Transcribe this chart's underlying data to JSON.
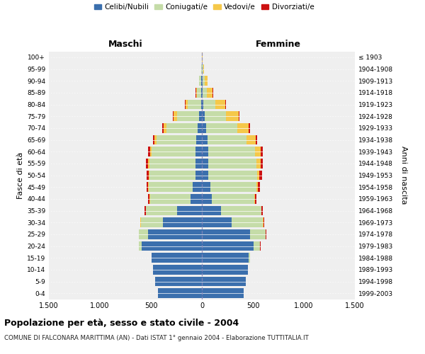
{
  "age_groups": [
    "0-4",
    "5-9",
    "10-14",
    "15-19",
    "20-24",
    "25-29",
    "30-34",
    "35-39",
    "40-44",
    "45-49",
    "50-54",
    "55-59",
    "60-64",
    "65-69",
    "70-74",
    "75-79",
    "80-84",
    "85-89",
    "90-94",
    "95-99",
    "100+"
  ],
  "birth_years": [
    "1999-2003",
    "1994-1998",
    "1989-1993",
    "1984-1988",
    "1979-1983",
    "1974-1978",
    "1969-1973",
    "1964-1968",
    "1959-1963",
    "1954-1958",
    "1949-1953",
    "1944-1948",
    "1939-1943",
    "1934-1938",
    "1929-1933",
    "1924-1928",
    "1919-1923",
    "1914-1918",
    "1909-1913",
    "1904-1908",
    "≤ 1903"
  ],
  "males": {
    "celibi": [
      430,
      460,
      480,
      490,
      590,
      530,
      380,
      240,
      110,
      90,
      65,
      65,
      65,
      55,
      40,
      25,
      10,
      8,
      5,
      3,
      2
    ],
    "coniugati": [
      1,
      1,
      2,
      5,
      30,
      85,
      220,
      310,
      400,
      430,
      450,
      450,
      430,
      390,
      310,
      220,
      130,
      40,
      20,
      5,
      0
    ],
    "vedovi": [
      0,
      0,
      0,
      0,
      0,
      1,
      1,
      2,
      3,
      5,
      8,
      10,
      12,
      18,
      28,
      30,
      20,
      10,
      5,
      2,
      0
    ],
    "divorziati": [
      0,
      0,
      0,
      0,
      1,
      3,
      5,
      10,
      12,
      15,
      20,
      22,
      20,
      15,
      10,
      8,
      5,
      2,
      0,
      0,
      0
    ]
  },
  "females": {
    "nubili": [
      410,
      430,
      450,
      460,
      510,
      470,
      290,
      185,
      95,
      85,
      65,
      60,
      60,
      55,
      40,
      25,
      12,
      8,
      5,
      3,
      2
    ],
    "coniugate": [
      1,
      1,
      3,
      10,
      60,
      155,
      310,
      395,
      420,
      450,
      475,
      475,
      460,
      385,
      305,
      210,
      120,
      40,
      22,
      8,
      0
    ],
    "vedove": [
      0,
      0,
      0,
      0,
      1,
      2,
      3,
      5,
      8,
      15,
      25,
      38,
      55,
      85,
      115,
      128,
      100,
      58,
      28,
      10,
      2
    ],
    "divorziate": [
      0,
      0,
      0,
      0,
      2,
      4,
      8,
      10,
      15,
      18,
      22,
      25,
      20,
      15,
      10,
      8,
      5,
      2,
      0,
      0,
      0
    ]
  },
  "colors": {
    "celibi": "#3B6FAD",
    "coniugati": "#C5DCA8",
    "vedovi": "#F5C84A",
    "divorziati": "#CC1111"
  },
  "xlim": 1500,
  "title": "Popolazione per età, sesso e stato civile - 2004",
  "subtitle": "COMUNE DI FALCONARA MARITTIMA (AN) - Dati ISTAT 1° gennaio 2004 - Elaborazione TUTTITALIA.IT",
  "xlabel_left": "Maschi",
  "xlabel_right": "Femmine",
  "ylabel_left": "Fasce di età",
  "ylabel_right": "Anni di nascita",
  "xticks": [
    -1500,
    -1000,
    -500,
    0,
    500,
    1000,
    1500
  ],
  "xtick_labels": [
    "1.500",
    "1.000",
    "500",
    "0",
    "500",
    "1.000",
    "1.500"
  ],
  "bg_color": "#FFFFFF",
  "plot_bg_color": "#EFEFEF"
}
